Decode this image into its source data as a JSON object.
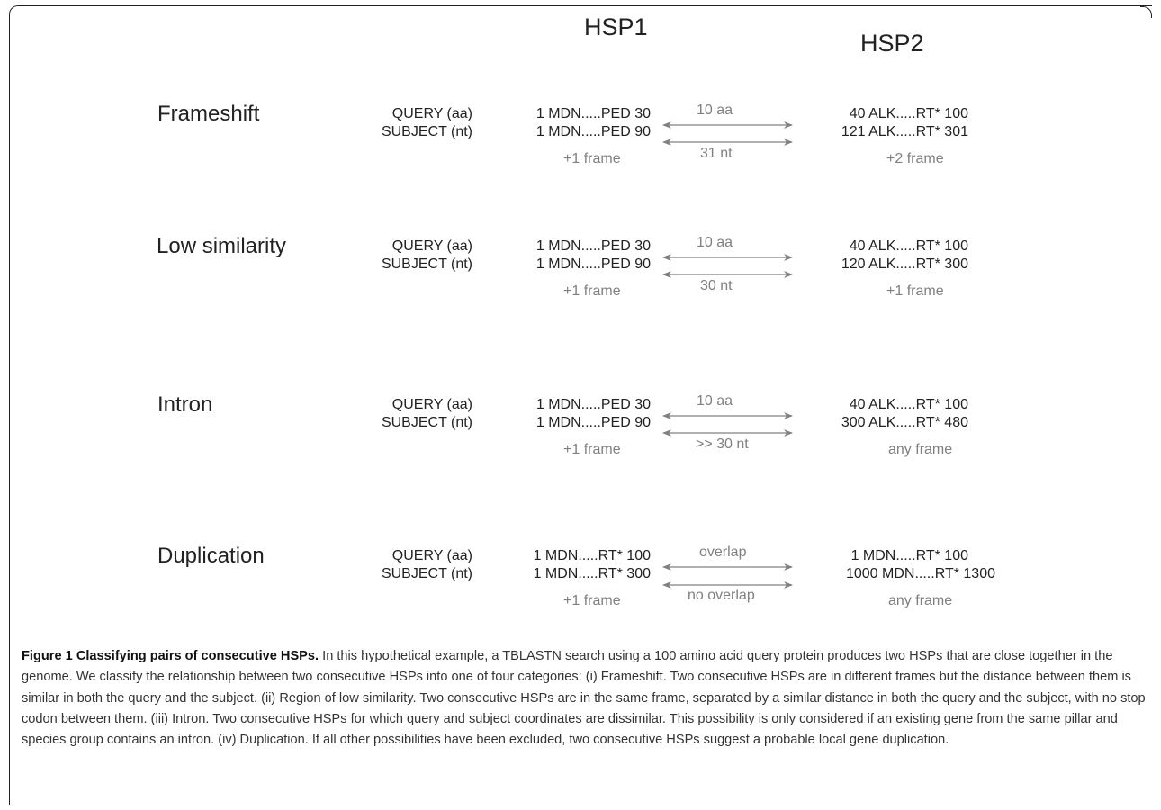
{
  "headers": {
    "hsp1": "HSP1",
    "hsp2": "HSP2"
  },
  "row_labels": {
    "query": "QUERY (aa)",
    "subject": "SUBJECT (nt)"
  },
  "panels": [
    {
      "category": "Frameshift",
      "hsp1_query": "1 MDN.....PED 30",
      "hsp1_subject": "1 MDN.....PED 90",
      "hsp1_frame": "+1 frame",
      "gap_query": "10 aa",
      "gap_subject": "31 nt",
      "hsp2_query": "40 ALK.....RT* 100",
      "hsp2_subject": "121 ALK.....RT* 301",
      "hsp2_frame": "+2 frame"
    },
    {
      "category": "Low similarity",
      "hsp1_query": "1 MDN.....PED 30",
      "hsp1_subject": "1 MDN.....PED 90",
      "hsp1_frame": "+1 frame",
      "gap_query": "10 aa",
      "gap_subject": "30 nt",
      "hsp2_query": "40 ALK.....RT* 100",
      "hsp2_subject": "120 ALK.....RT* 300",
      "hsp2_frame": "+1 frame"
    },
    {
      "category": "Intron",
      "hsp1_query": "1 MDN.....PED 30",
      "hsp1_subject": "1 MDN.....PED 90",
      "hsp1_frame": "+1 frame",
      "gap_query": "10 aa",
      "gap_subject": ">> 30 nt",
      "hsp2_query": "40 ALK.....RT* 100",
      "hsp2_subject": "300 ALK.....RT* 480",
      "hsp2_frame": "any frame"
    },
    {
      "category": "Duplication",
      "hsp1_query": "1 MDN.....RT* 100",
      "hsp1_subject": "1 MDN.....RT* 300",
      "hsp1_frame": "+1 frame",
      "gap_query": "overlap",
      "gap_subject": "no overlap",
      "hsp2_query": "1 MDN.....RT* 100",
      "hsp2_subject": "1000 MDN.....RT* 1300",
      "hsp2_frame": "any frame"
    }
  ],
  "caption": {
    "title": "Figure 1 Classifying pairs of consecutive HSPs.",
    "body": "In this hypothetical example, a TBLASTN search using a 100 amino acid query protein produces two HSPs that are close together in the genome. We classify the relationship between two consecutive HSPs into one of four categories: (i) Frameshift. Two consecutive HSPs are in different frames but the distance between them is similar in both the query and the subject. (ii) Region of low similarity. Two consecutive HSPs are in the same frame, separated by a similar distance in both the query and the subject, with no stop codon between them. (iii) Intron. Two consecutive HSPs for which query and subject coordinates are dissimilar. This possibility is only considered if an existing gene from the same pillar and species group contains an intron. (iv) Duplication. If all other possibilities have been excluded, two consecutive HSPs suggest a probable local gene duplication."
  }
}
